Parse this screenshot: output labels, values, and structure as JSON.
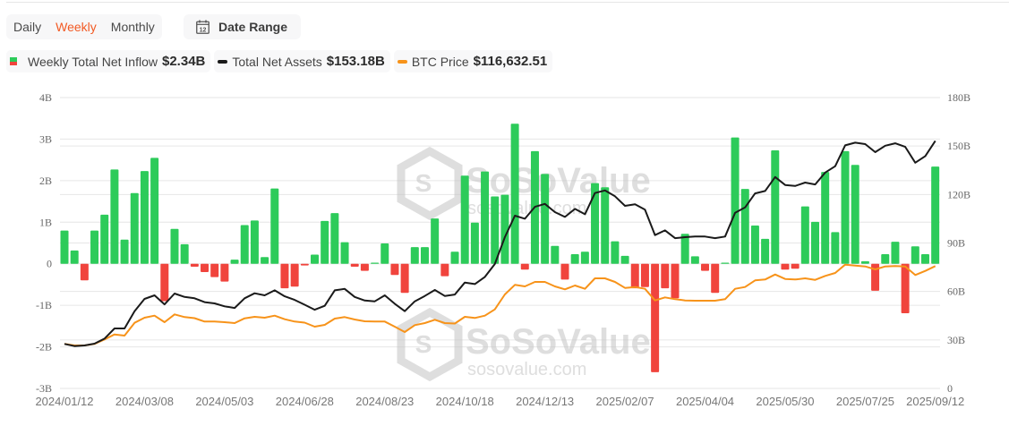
{
  "controls": {
    "periods": [
      {
        "label": "Daily",
        "active": false
      },
      {
        "label": "Weekly",
        "active": true
      },
      {
        "label": "Monthly",
        "active": false
      }
    ],
    "date_range_label": "Date Range",
    "date_range_icon": "calendar-icon",
    "calendar_day": "12"
  },
  "legend": [
    {
      "label": "Weekly Total Net Inflow",
      "value": "$2.34B",
      "icon": "bar-swatch"
    },
    {
      "label": "Total Net Assets",
      "value": "$153.18B",
      "icon": "line-swatch",
      "color": "#1a1a1a"
    },
    {
      "label": "BTC Price",
      "value": "$116,632.51",
      "icon": "line-swatch",
      "color": "#f7931a"
    }
  ],
  "colors": {
    "inflow_positive": "#2dcb5a",
    "inflow_negative": "#f0443d",
    "total_net_assets": "#1a1a1a",
    "btc_price": "#f7931a",
    "grid": "#e6e6e6"
  },
  "watermark": {
    "brand": "SoSoValue",
    "url": "sosovalue.com"
  },
  "chart_data": {
    "type": "bar",
    "title": "",
    "x_label_ticks": [
      "2024/01/12",
      "2024/03/08",
      "2024/05/03",
      "2024/06/28",
      "2024/08/23",
      "2024/10/18",
      "2024/12/13",
      "2025/02/07",
      "2025/04/04",
      "2025/05/30",
      "2025/07/25",
      "2025/09/12"
    ],
    "x_label_indices": [
      0,
      8,
      16,
      24,
      32,
      40,
      48,
      56,
      64,
      72,
      80,
      87
    ],
    "y_left": {
      "label": "Weekly Total Net Inflow",
      "ticks": [
        "4B",
        "3B",
        "2B",
        "1B",
        "0",
        "-1B",
        "-2B",
        "-3B"
      ],
      "range": [
        -3,
        4
      ],
      "unit": "B USD"
    },
    "y_right": {
      "label": "Total Net Assets",
      "ticks": [
        "180B",
        "150B",
        "120B",
        "90B",
        "60B",
        "30B",
        "0"
      ],
      "range": [
        0,
        180
      ],
      "unit": "B USD"
    },
    "grid": true,
    "legend_position": "top-left",
    "first_date": "2024/01/12",
    "frequency": "weekly",
    "series": [
      {
        "name": "Weekly Total Net Inflow",
        "type": "bar",
        "axis": "left",
        "unit": "B USD",
        "values": [
          0.8,
          0.32,
          -0.4,
          0.8,
          1.18,
          2.27,
          0.58,
          1.7,
          2.23,
          2.55,
          -0.9,
          0.84,
          0.47,
          -0.07,
          -0.2,
          -0.32,
          -0.43,
          0.1,
          0.93,
          1.04,
          0.16,
          1.81,
          -0.59,
          -0.55,
          -0.04,
          0.22,
          1.03,
          1.22,
          0.52,
          -0.07,
          -0.17,
          0.02,
          0.49,
          -0.27,
          -0.7,
          0.4,
          0.4,
          1.09,
          -0.3,
          0.29,
          2.12,
          0.99,
          2.22,
          1.62,
          1.66,
          3.37,
          -0.14,
          2.71,
          2.16,
          0.43,
          -0.38,
          0.23,
          0.29,
          1.94,
          1.84,
          0.54,
          0.19,
          -0.59,
          -0.56,
          -2.61,
          -0.59,
          -0.83,
          0.72,
          0.18,
          -0.17,
          -0.7,
          0.01,
          3.04,
          1.8,
          0.92,
          0.6,
          2.73,
          -0.14,
          -0.12,
          1.38,
          1.01,
          2.21,
          0.76,
          2.71,
          2.38,
          0.06,
          -0.65,
          0.23,
          0.53,
          -1.19,
          0.42,
          0.23,
          2.34
        ]
      },
      {
        "name": "Total Net Assets",
        "type": "line",
        "axis": "right",
        "unit": "B USD",
        "values": [
          27.5,
          26.2,
          26.6,
          27.7,
          30.8,
          37.1,
          37.1,
          47.8,
          55.4,
          57.6,
          52.0,
          58.7,
          56.6,
          55.8,
          53.4,
          52.6,
          50.8,
          49.8,
          55.8,
          58.9,
          57.6,
          60.7,
          57.0,
          54.8,
          51.8,
          48.7,
          51.1,
          60.7,
          61.6,
          56.6,
          54.4,
          53.9,
          57.6,
          52.4,
          47.8,
          53.9,
          57.2,
          60.9,
          57.2,
          58.1,
          65.5,
          64.6,
          69.0,
          77.0,
          93.6,
          106.9,
          105.0,
          112.4,
          114.2,
          109.1,
          106.1,
          111.1,
          107.8,
          120.9,
          122.5,
          118.9,
          113.0,
          113.9,
          110.6,
          94.9,
          97.8,
          93.0,
          93.6,
          94.0,
          94.0,
          93.0,
          94.0,
          108.7,
          112.0,
          120.7,
          122.2,
          130.8,
          125.9,
          125.3,
          127.4,
          126.2,
          133.6,
          137.5,
          150.4,
          152.1,
          151.2,
          146.2,
          150.2,
          151.7,
          149.5,
          139.7,
          143.8,
          153.18
        ]
      },
      {
        "name": "BTC Price",
        "type": "line",
        "axis": "hidden",
        "unit": "USD",
        "values": [
          42400,
          40950,
          40950,
          42400,
          46670,
          51450,
          50340,
          62540,
          67400,
          69370,
          63140,
          70560,
          68000,
          66980,
          63730,
          63730,
          63140,
          62280,
          66810,
          68260,
          67400,
          69370,
          65950,
          63730,
          62710,
          58870,
          60580,
          66550,
          68000,
          65700,
          63990,
          63730,
          63730,
          58870,
          53750,
          60320,
          62280,
          65440,
          62280,
          61860,
          68260,
          67150,
          69370,
          75340,
          89590,
          98720,
          97260,
          101530,
          101530,
          97260,
          94450,
          98120,
          94960,
          104940,
          104940,
          101530,
          95810,
          96670,
          94960,
          83870,
          86770,
          85060,
          83870,
          83610,
          83610,
          83610,
          85060,
          94960,
          96670,
          102980,
          103830,
          108610,
          104350,
          103830,
          104940,
          103490,
          107250,
          110060,
          118000,
          117150,
          116290,
          113480,
          116290,
          116630,
          116290,
          108100,
          112020,
          116632.51
        ]
      }
    ]
  }
}
